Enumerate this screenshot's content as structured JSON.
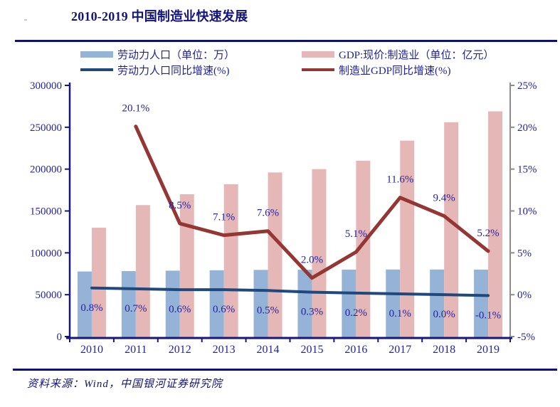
{
  "page": {
    "title": "2010-2019 中国制造业快速发展",
    "source_note": "资料来源：Wind，中国银河证券研究院"
  },
  "colors": {
    "labor_bar": "#95B3D7",
    "gdp_bar": "#E5B8B7",
    "labor_growth_line": "#1F497D",
    "gdp_growth_line": "#943634",
    "axis_navy": "#16167E",
    "axis_gray": "#8C8C8C",
    "label_text": "#2424A0",
    "title_text": "#14147A"
  },
  "legend": {
    "items": [
      {
        "label": "劳动力人口（单位：万）",
        "swatch": "bar",
        "color": "#95B3D7"
      },
      {
        "label": "GDP:现价:制造业（单位：亿元）",
        "swatch": "bar",
        "color": "#E5B8B7"
      },
      {
        "label": "劳动力人口同比增速(%)",
        "swatch": "line",
        "color": "#1F497D"
      },
      {
        "label": "制造业GDP同比增速(%)",
        "swatch": "line",
        "color": "#943634"
      }
    ]
  },
  "chart_data": {
    "type": "bar",
    "subtype": "combo-bar-line-dual-axis",
    "title": "2010-2019 中国制造业快速发展",
    "categories": [
      "2010",
      "2011",
      "2012",
      "2013",
      "2014",
      "2015",
      "2016",
      "2017",
      "2018",
      "2019"
    ],
    "series": [
      {
        "name": "劳动力人口（单位：万）",
        "type": "bar",
        "axis": "left",
        "color": "#95B3D7",
        "values": [
          77700,
          78200,
          78700,
          79200,
          79600,
          79800,
          80000,
          80100,
          80100,
          80000
        ]
      },
      {
        "name": "GDP:现价:制造业（单位：亿元）",
        "type": "bar",
        "axis": "left",
        "color": "#E5B8B7",
        "values": [
          130000,
          157000,
          170000,
          182000,
          196000,
          200000,
          210000,
          234000,
          256000,
          269000
        ]
      },
      {
        "name": "劳动力人口同比增速(%)",
        "type": "line",
        "axis": "right",
        "color": "#1F497D",
        "values": [
          0.8,
          0.7,
          0.6,
          0.6,
          0.5,
          0.3,
          0.2,
          0.1,
          0.0,
          -0.1
        ],
        "labels": [
          "0.8%",
          "0.7%",
          "0.6%",
          "0.6%",
          "0.5%",
          "0.3%",
          "0.2%",
          "0.1%",
          "0.0%",
          "-0.1%"
        ],
        "label_side": "below"
      },
      {
        "name": "制造业GDP同比增速(%)",
        "type": "line",
        "axis": "right",
        "color": "#943634",
        "values": [
          null,
          20.1,
          8.5,
          7.1,
          7.6,
          2.0,
          5.1,
          11.6,
          9.4,
          5.2
        ],
        "labels": [
          null,
          "20.1%",
          "8.5%",
          "7.1%",
          "7.6%",
          "2.0%",
          "5.1%",
          "11.6%",
          "9.4%",
          "5.2%"
        ],
        "label_side": "above"
      }
    ],
    "left_axis": {
      "min": 0,
      "max": 300000,
      "step": 50000,
      "ticks": [
        "0",
        "50000",
        "100000",
        "150000",
        "200000",
        "250000",
        "300000"
      ]
    },
    "right_axis": {
      "min": -5,
      "max": 25,
      "step": 5,
      "ticks": [
        "-5%",
        "0%",
        "5%",
        "10%",
        "15%",
        "20%",
        "25%"
      ]
    },
    "grid": false,
    "legend_position": "top"
  }
}
